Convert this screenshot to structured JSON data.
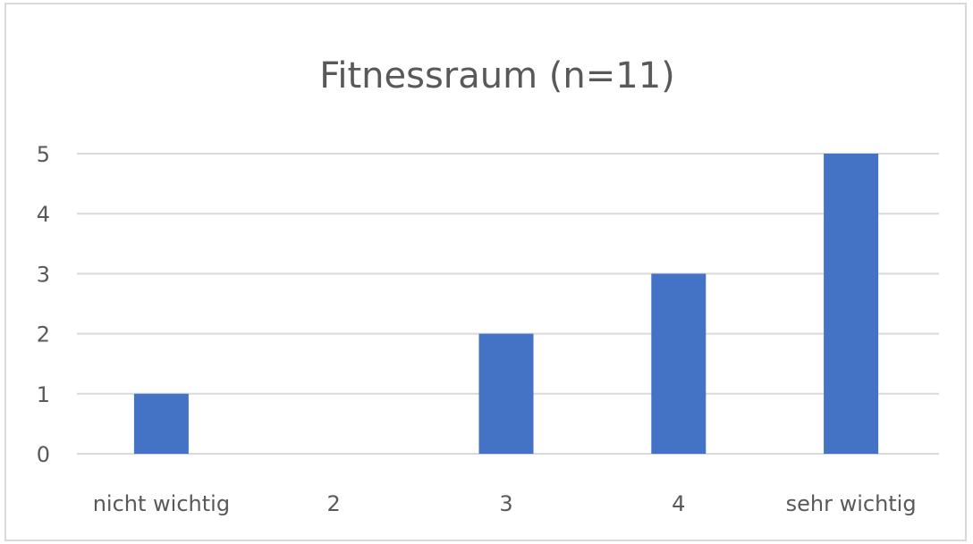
{
  "chart_data": {
    "type": "bar",
    "title": "Fitnessraum (n=11)",
    "categories": [
      "nicht wichtig",
      "2",
      "3",
      "4",
      "sehr wichtig"
    ],
    "values": [
      1,
      0,
      2,
      3,
      5
    ],
    "ylim": [
      0,
      5
    ],
    "yticks": [
      "0",
      "1",
      "2",
      "3",
      "4",
      "5"
    ],
    "grid": true,
    "bar_color": "#4472c4",
    "grid_color": "#d9d9d9"
  }
}
